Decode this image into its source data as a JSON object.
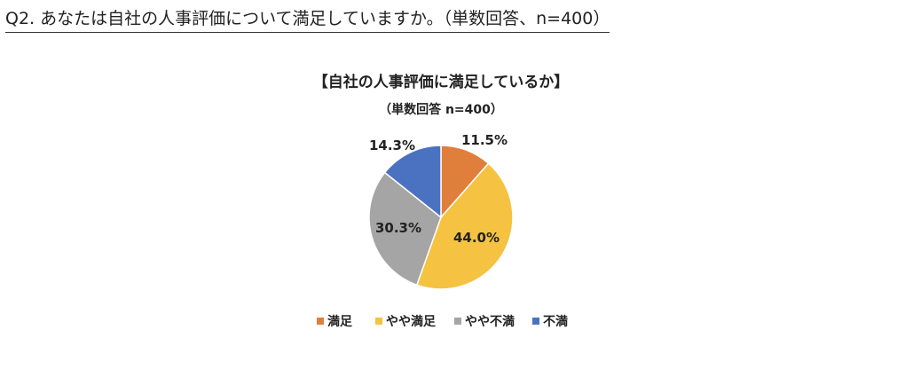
{
  "question": {
    "text": "Q2. あなたは自社の人事評価について満足していますか。（単数回答、n=400）"
  },
  "chart_data": {
    "type": "pie",
    "title": "【自社の人事評価に満足しているか】",
    "subtitle": "（単数回答  n=400）",
    "categories": [
      "満足",
      "やや満足",
      "やや不満",
      "不満"
    ],
    "values": [
      11.5,
      44.0,
      30.3,
      14.3
    ],
    "data_labels": [
      "11.5%",
      "44.0%",
      "30.3%",
      "14.3%"
    ],
    "colors": [
      "#E07E3C",
      "#F5C242",
      "#A5A5A5",
      "#4A72C0"
    ],
    "legend_position": "bottom",
    "start_angle": "12 o'clock",
    "direction": "clockwise"
  }
}
